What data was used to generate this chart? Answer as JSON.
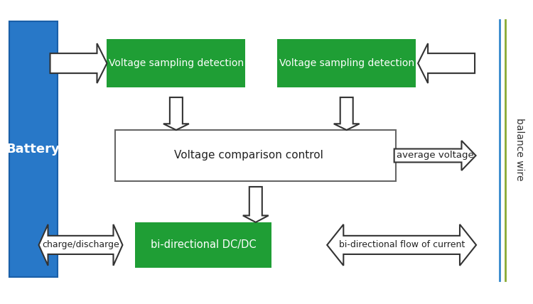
{
  "fig_width": 7.5,
  "fig_height": 4.28,
  "dpi": 100,
  "bg_color": "#ffffff",
  "battery_color": "#2878c8",
  "battery_label": "Battery",
  "battery_label_color": "#ffffff",
  "green_box_color": "#1f9e35",
  "green_box_text_color": "#ffffff",
  "white_box_color": "#ffffff",
  "white_box_edge_color": "#666666",
  "balance_wire_color_blue": "#3388cc",
  "balance_wire_color_green": "#88aa33",
  "balance_wire_label": "balance wire",
  "vsd_left_label": "Voltage sampling detection",
  "vsd_right_label": "Voltage sampling detection",
  "vcc_label": "Voltage comparison control",
  "avg_label": "average voltage",
  "dcdc_label": "bi-directional DC/DC",
  "charge_label": "charge/discharge",
  "flow_label": "bi-directional flow of current",
  "arrow_edge_color": "#333333",
  "arrow_face_color": "#ffffff"
}
